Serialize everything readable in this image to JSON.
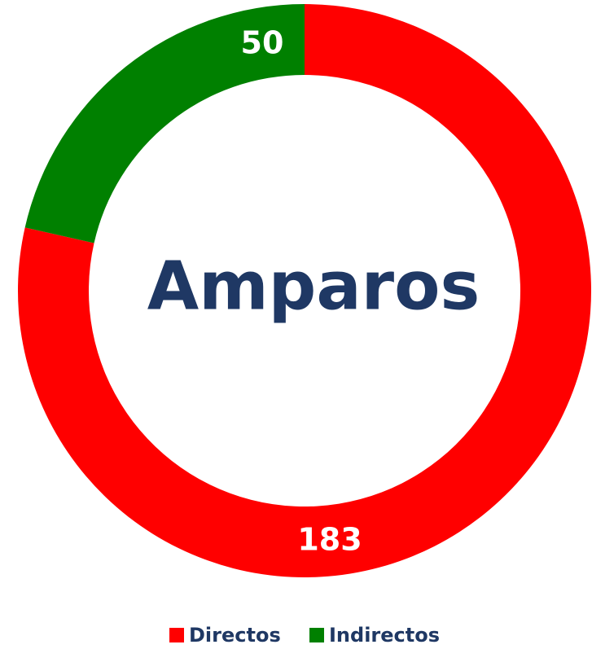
{
  "chart_data": {
    "type": "donut",
    "title": "Amparos",
    "categories": [
      "Directos",
      "Indirectos"
    ],
    "values": [
      183,
      50
    ],
    "colors": [
      "#ff0000",
      "#008000"
    ],
    "legend": "bottom"
  }
}
